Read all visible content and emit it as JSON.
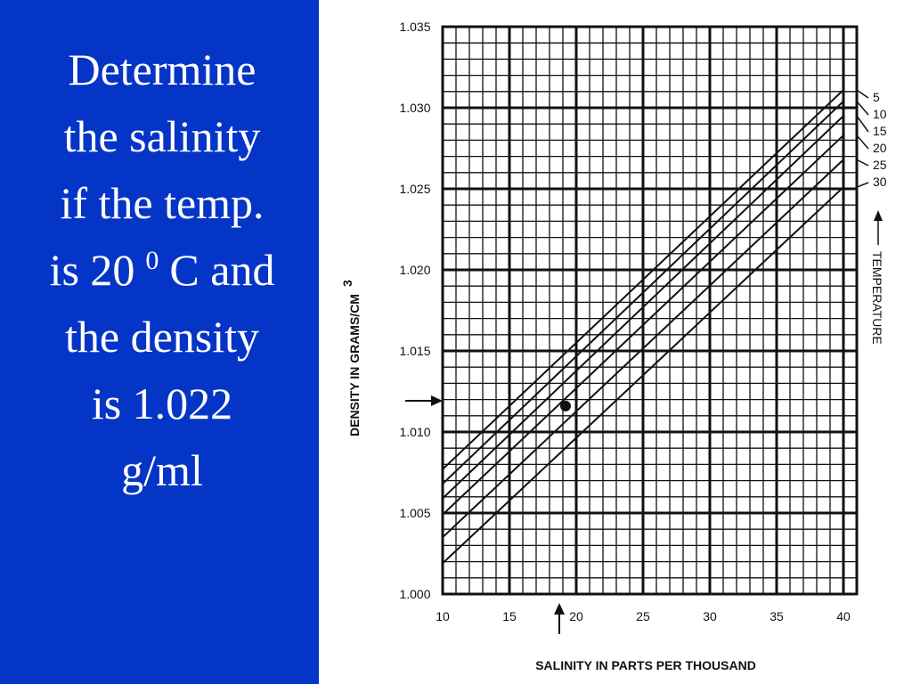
{
  "slide": {
    "lines": [
      "Determine",
      "the salinity",
      "if the temp."
    ],
    "line4": {
      "before": "is 20",
      "sup": "0",
      "after": "C and"
    },
    "lines2": [
      "the density",
      "is 1.022",
      "g/ml"
    ]
  },
  "chart_data": {
    "type": "line",
    "y_label": "DENSITY IN GRAMS/CM",
    "y_label_sup": "3",
    "x_label": "SALINITY IN PARTS PER THOUSAND",
    "legend_title": "TEMPERATURE",
    "x": [
      10,
      40
    ],
    "series": [
      {
        "name": "5",
        "color": "#111",
        "values": [
          1.0077,
          1.0311
        ]
      },
      {
        "name": "10",
        "color": "#111",
        "values": [
          1.0068,
          1.0304
        ]
      },
      {
        "name": "15",
        "color": "#111",
        "values": [
          1.0059,
          1.0295
        ]
      },
      {
        "name": "20",
        "color": "#111",
        "values": [
          1.0049,
          1.0283
        ]
      },
      {
        "name": "25",
        "color": "#111",
        "values": [
          1.0035,
          1.0268
        ]
      },
      {
        "name": "30",
        "color": "#111",
        "values": [
          1.0019,
          1.0251
        ]
      }
    ],
    "point": {
      "x": 19.2,
      "y": 1.0116
    },
    "xlim": [
      10,
      41
    ],
    "ylim": [
      1.0,
      1.035
    ],
    "xticks": [
      10,
      15,
      20,
      25,
      30,
      35,
      40
    ],
    "yticks": [
      {
        "value": 1.0,
        "label": "1.000"
      },
      1.005,
      {
        "value": 1.01,
        "label": "1.010"
      },
      1.015,
      {
        "value": 1.02,
        "label": "1.020"
      },
      1.025,
      {
        "value": 1.03,
        "label": "1.030"
      },
      1.035
    ],
    "grid": true
  }
}
